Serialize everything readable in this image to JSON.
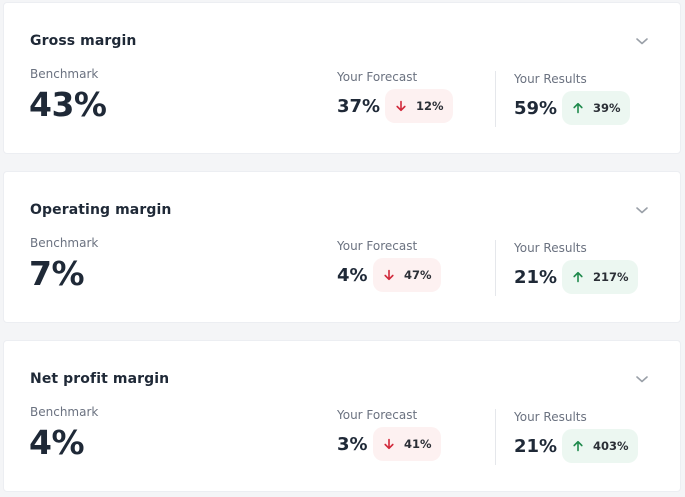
{
  "colors": {
    "down_arrow": "#d1283a",
    "up_arrow": "#1f8a4c",
    "down_pill_bg": "#fdf1f1",
    "up_pill_bg": "#ecf7f1"
  },
  "labels": {
    "benchmark": "Benchmark",
    "forecast": "Your Forecast",
    "results": "Your Results"
  },
  "cards": [
    {
      "title": "Gross margin",
      "benchmark": "43%",
      "forecast": "37%",
      "forecast_change": "12%",
      "forecast_direction": "down",
      "results": "59%",
      "results_change": "39%",
      "results_direction": "up"
    },
    {
      "title": "Operating margin",
      "benchmark": "7%",
      "forecast": "4%",
      "forecast_change": "47%",
      "forecast_direction": "down",
      "results": "21%",
      "results_change": "217%",
      "results_direction": "up"
    },
    {
      "title": "Net profit margin",
      "benchmark": "4%",
      "forecast": "3%",
      "forecast_change": "41%",
      "forecast_direction": "down",
      "results": "21%",
      "results_change": "403%",
      "results_direction": "up"
    }
  ]
}
